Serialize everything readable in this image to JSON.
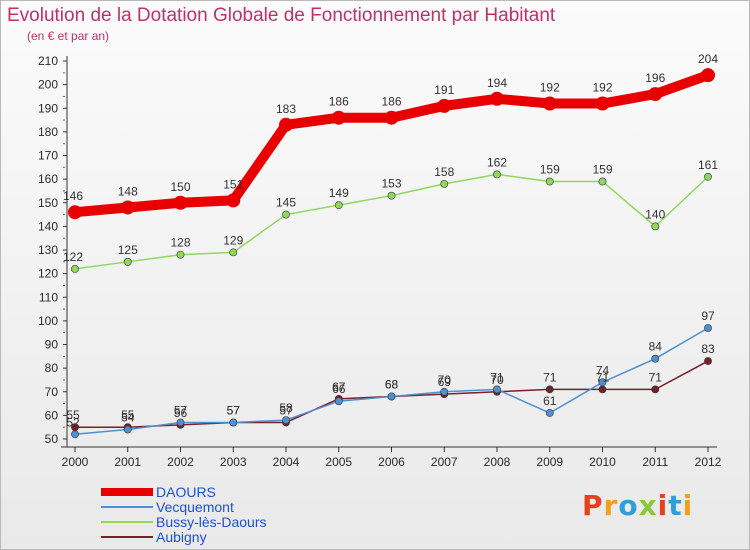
{
  "header": {
    "title": "Evolution de la Dotation Globale de Fonctionnement par Habitant",
    "subtitle": "(en € et par an)"
  },
  "logo": {
    "text": "Proxiti",
    "colors": [
      "#e8401c",
      "#f2a01b",
      "#2e9fd8",
      "#8cc63f",
      "#e8401c",
      "#2e9fd8",
      "#f2a01b"
    ]
  },
  "chart_data": {
    "type": "line",
    "title": "Evolution de la Dotation Globale de Fonctionnement par Habitant",
    "subtitle": "(en € et par an)",
    "x": [
      "2000",
      "2001",
      "2002",
      "2003",
      "2004",
      "2005",
      "2006",
      "2007",
      "2008",
      "2009",
      "2010",
      "2011",
      "2012"
    ],
    "ylim": [
      50,
      210
    ],
    "yticks": [
      50,
      60,
      70,
      80,
      90,
      100,
      110,
      120,
      130,
      140,
      150,
      160,
      170,
      180,
      190,
      200,
      210
    ],
    "grid": false,
    "legend_position": "bottom-left",
    "series": [
      {
        "name": "DAOURS",
        "color": "#e80000",
        "style": "thick",
        "values": [
          146,
          148,
          150,
          151,
          183,
          186,
          186,
          191,
          194,
          192,
          192,
          196,
          204
        ]
      },
      {
        "name": "Vecquemont",
        "color": "#4f90d0",
        "style": "thin",
        "values": [
          52,
          54,
          57,
          57,
          58,
          66,
          68,
          70,
          71,
          61,
          74,
          84,
          97
        ]
      },
      {
        "name": "Bussy-lès-Daours",
        "color": "#8fd85a",
        "style": "thin",
        "values": [
          122,
          125,
          128,
          129,
          145,
          149,
          153,
          158,
          162,
          159,
          159,
          140,
          161
        ]
      },
      {
        "name": "Aubigny",
        "color": "#7a1e2b",
        "style": "thin",
        "values": [
          55,
          55,
          56,
          57,
          57,
          67,
          68,
          69,
          70,
          71,
          71,
          71,
          83
        ]
      }
    ],
    "data_labels": [
      {
        "series": "DAOURS",
        "text": [
          "146",
          "148",
          "150",
          "151",
          "183",
          "186",
          "186",
          "191",
          "194",
          "192",
          "192",
          "196",
          "204"
        ]
      },
      {
        "series": "Vecquemont",
        "text": [
          "52",
          "54",
          "57",
          "57",
          "58",
          "66",
          "68",
          "70",
          "71",
          "61",
          "74",
          "84",
          "97"
        ]
      },
      {
        "series": "Bussy-lès-Daours",
        "text": [
          "122",
          "125",
          "128",
          "129",
          "145",
          "149",
          "153",
          "158",
          "162",
          "159",
          "159",
          "140",
          "161"
        ]
      },
      {
        "series": "Aubigny",
        "text": [
          "55",
          "55",
          "56",
          "57",
          "57",
          "67",
          "68",
          "69",
          "70",
          "71",
          "71",
          "71",
          "83"
        ]
      }
    ]
  }
}
